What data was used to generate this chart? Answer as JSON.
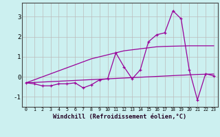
{
  "x": [
    0,
    1,
    2,
    3,
    4,
    5,
    6,
    7,
    8,
    9,
    10,
    11,
    12,
    13,
    14,
    15,
    16,
    17,
    18,
    19,
    20,
    21,
    22,
    23
  ],
  "y_line1": [
    -0.3,
    -0.35,
    -0.45,
    -0.45,
    -0.35,
    -0.35,
    -0.3,
    -0.55,
    -0.4,
    -0.15,
    -0.1,
    1.2,
    0.5,
    -0.1,
    0.35,
    1.75,
    2.1,
    2.2,
    3.3,
    2.9,
    0.35,
    -1.15,
    0.15,
    0.05
  ],
  "y_trend1": [
    -0.3,
    -0.15,
    0.0,
    0.15,
    0.3,
    0.45,
    0.6,
    0.75,
    0.9,
    1.0,
    1.1,
    1.2,
    1.3,
    1.35,
    1.4,
    1.45,
    1.5,
    1.52,
    1.53,
    1.54,
    1.55,
    1.55,
    1.55,
    1.55
  ],
  "y_trend2": [
    -0.3,
    -0.28,
    -0.26,
    -0.24,
    -0.22,
    -0.2,
    -0.18,
    -0.16,
    -0.14,
    -0.12,
    -0.1,
    -0.08,
    -0.06,
    -0.04,
    -0.02,
    0.0,
    0.02,
    0.04,
    0.06,
    0.08,
    0.1,
    0.12,
    0.13,
    0.14
  ],
  "line_color": "#990099",
  "bg_color": "#CCF0F0",
  "grid_color": "#BBBBBB",
  "xlabel": "Windchill (Refroidissement éolien,°C)",
  "ylim": [
    -1.5,
    3.7
  ],
  "xlim": [
    -0.5,
    23.5
  ],
  "yticks": [
    -1,
    0,
    1,
    2,
    3
  ],
  "xticks": [
    0,
    1,
    2,
    3,
    4,
    5,
    6,
    7,
    8,
    9,
    10,
    11,
    12,
    13,
    14,
    15,
    16,
    17,
    18,
    19,
    20,
    21,
    22,
    23
  ]
}
